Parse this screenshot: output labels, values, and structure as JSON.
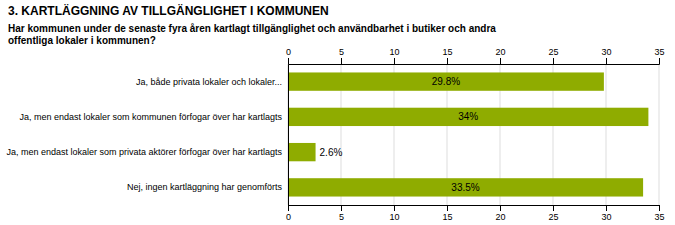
{
  "chart_data": {
    "type": "bar",
    "orientation": "horizontal",
    "title": "3. KARTLÄGGNING AV TILLGÄNGLIGHET I KOMMUNEN",
    "subtitle": "Har kommunen under de senaste fyra åren kartlagt tillgänglighet och användbarhet i butiker och andra\noffentliga lokaler i kommunen?",
    "categories": [
      "Ja, både privata lokaler och lokaler...",
      "Ja, men endast lokaler som kommunen förfogar över har kartlagts",
      "Ja, men endast lokaler som privata aktörer förfogar över har kartlagts",
      "Nej, ingen kartläggning har genomförts"
    ],
    "values": [
      29.8,
      34.0,
      2.6,
      33.5
    ],
    "value_labels": [
      "29.8%",
      "34%",
      "2.6%",
      "33.5%"
    ],
    "data_labels": true,
    "color": "#8fac00",
    "xlim": [
      0,
      35
    ],
    "xticks": [
      0,
      5,
      10,
      15,
      20,
      25,
      30,
      35
    ],
    "grid": true
  }
}
